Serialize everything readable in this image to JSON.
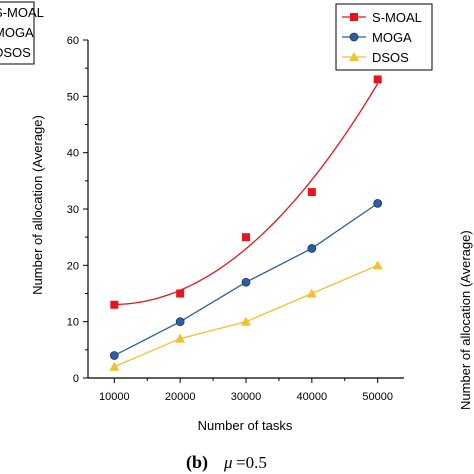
{
  "chart_data": {
    "type": "line",
    "x": [
      10000,
      20000,
      30000,
      40000,
      50000
    ],
    "xlabel": "Number of tasks",
    "ylabel": "Number of allocation (Average)",
    "xlim": [
      6000,
      54000
    ],
    "ylim": [
      0,
      60
    ],
    "xticks": [
      "10000",
      "20000",
      "30000",
      "40000",
      "50000"
    ],
    "yticks": [
      "0",
      "10",
      "20",
      "30",
      "40",
      "50",
      "60"
    ],
    "grid": false,
    "legend_position": "top-right",
    "series": [
      {
        "name": "S-MOAL",
        "values": [
          13,
          15,
          25,
          33,
          53
        ],
        "color": "#e8141d",
        "marker": "square",
        "line": "smooth-fit"
      },
      {
        "name": "MOGA",
        "values": [
          4,
          10,
          17,
          23,
          31
        ],
        "color": "#2e5e9e",
        "marker": "circle",
        "line": "straight"
      },
      {
        "name": "DSOS",
        "values": [
          2,
          7,
          10,
          15,
          20
        ],
        "color": "#f2c12e",
        "marker": "triangle",
        "line": "straight"
      }
    ]
  },
  "caption": {
    "label": "(b)",
    "symbol": "μ",
    "value": "=0.5"
  },
  "left_cropped_legend": [
    "S-MOAL",
    "MOGA",
    "DSOS"
  ],
  "right_cropped_ylabel": "Number of allocation (Average)"
}
